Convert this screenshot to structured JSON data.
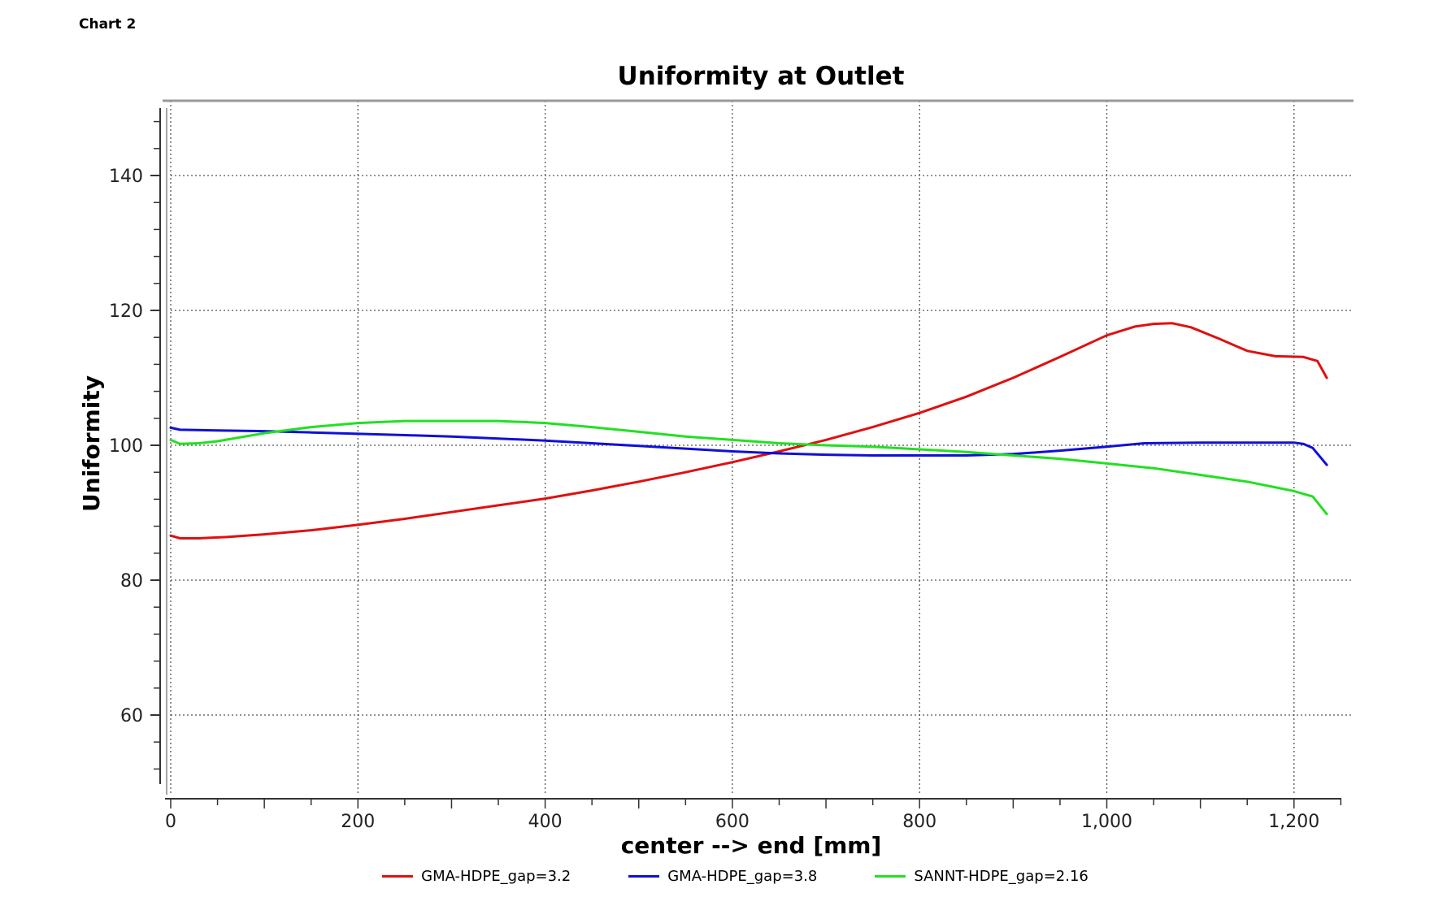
{
  "page_label": "Chart 2",
  "chart_data": {
    "type": "line",
    "title": "Uniformity at Outlet",
    "xlabel": "center --> end [mm]",
    "ylabel": "Uniformity",
    "xlim": [
      0,
      1240
    ],
    "ylim": [
      50,
      150
    ],
    "x_ticks": [
      0,
      200,
      400,
      600,
      800,
      1000,
      1200
    ],
    "x_tick_labels": [
      "0",
      "200",
      "400",
      "600",
      "800",
      "1,000",
      "1,200"
    ],
    "y_ticks": [
      60,
      80,
      100,
      120,
      140
    ],
    "y_tick_labels": [
      "60",
      "80",
      "100",
      "120",
      "140"
    ],
    "grid": true,
    "grid_style": "dotted",
    "legend_position": "bottom",
    "series": [
      {
        "name": "GMA-HDPE_gap=3.2",
        "color": "#e01010",
        "x": [
          0,
          10,
          30,
          60,
          100,
          150,
          200,
          250,
          300,
          350,
          400,
          450,
          500,
          550,
          600,
          650,
          700,
          750,
          800,
          850,
          900,
          950,
          1000,
          1030,
          1050,
          1070,
          1090,
          1120,
          1150,
          1180,
          1210,
          1225,
          1235
        ],
        "y": [
          86.6,
          86.2,
          86.2,
          86.4,
          86.8,
          87.4,
          88.2,
          89.1,
          90.1,
          91.1,
          92.1,
          93.3,
          94.6,
          96,
          97.5,
          99.1,
          100.8,
          102.7,
          104.8,
          107.2,
          110,
          113.1,
          116.3,
          117.6,
          118,
          118.1,
          117.5,
          115.8,
          114,
          113.2,
          113.1,
          112.5,
          110
        ]
      },
      {
        "name": "GMA-HDPE_gap=3.8",
        "color": "#1010d8",
        "x": [
          0,
          10,
          50,
          100,
          150,
          200,
          250,
          300,
          350,
          400,
          450,
          500,
          550,
          600,
          650,
          700,
          750,
          800,
          850,
          900,
          950,
          1000,
          1040,
          1100,
          1150,
          1200,
          1210,
          1220,
          1235
        ],
        "y": [
          102.6,
          102.3,
          102.2,
          102.1,
          101.9,
          101.7,
          101.5,
          101.3,
          101,
          100.7,
          100.3,
          99.9,
          99.5,
          99.1,
          98.8,
          98.6,
          98.5,
          98.5,
          98.5,
          98.7,
          99.2,
          99.8,
          100.3,
          100.4,
          100.4,
          100.4,
          100.2,
          99.6,
          97.1
        ]
      },
      {
        "name": "SANNT-HDPE_gap=2.16",
        "color": "#22e022",
        "x": [
          0,
          10,
          30,
          50,
          100,
          150,
          200,
          250,
          300,
          350,
          400,
          450,
          500,
          550,
          600,
          650,
          700,
          750,
          800,
          850,
          900,
          950,
          1000,
          1050,
          1100,
          1150,
          1200,
          1220,
          1235
        ],
        "y": [
          100.8,
          100.2,
          100.3,
          100.6,
          101.8,
          102.7,
          103.3,
          103.6,
          103.6,
          103.6,
          103.3,
          102.7,
          102,
          101.3,
          100.8,
          100.3,
          100,
          99.8,
          99.4,
          99,
          98.5,
          98,
          97.3,
          96.6,
          95.6,
          94.6,
          93.2,
          92.4,
          89.8
        ]
      }
    ]
  }
}
